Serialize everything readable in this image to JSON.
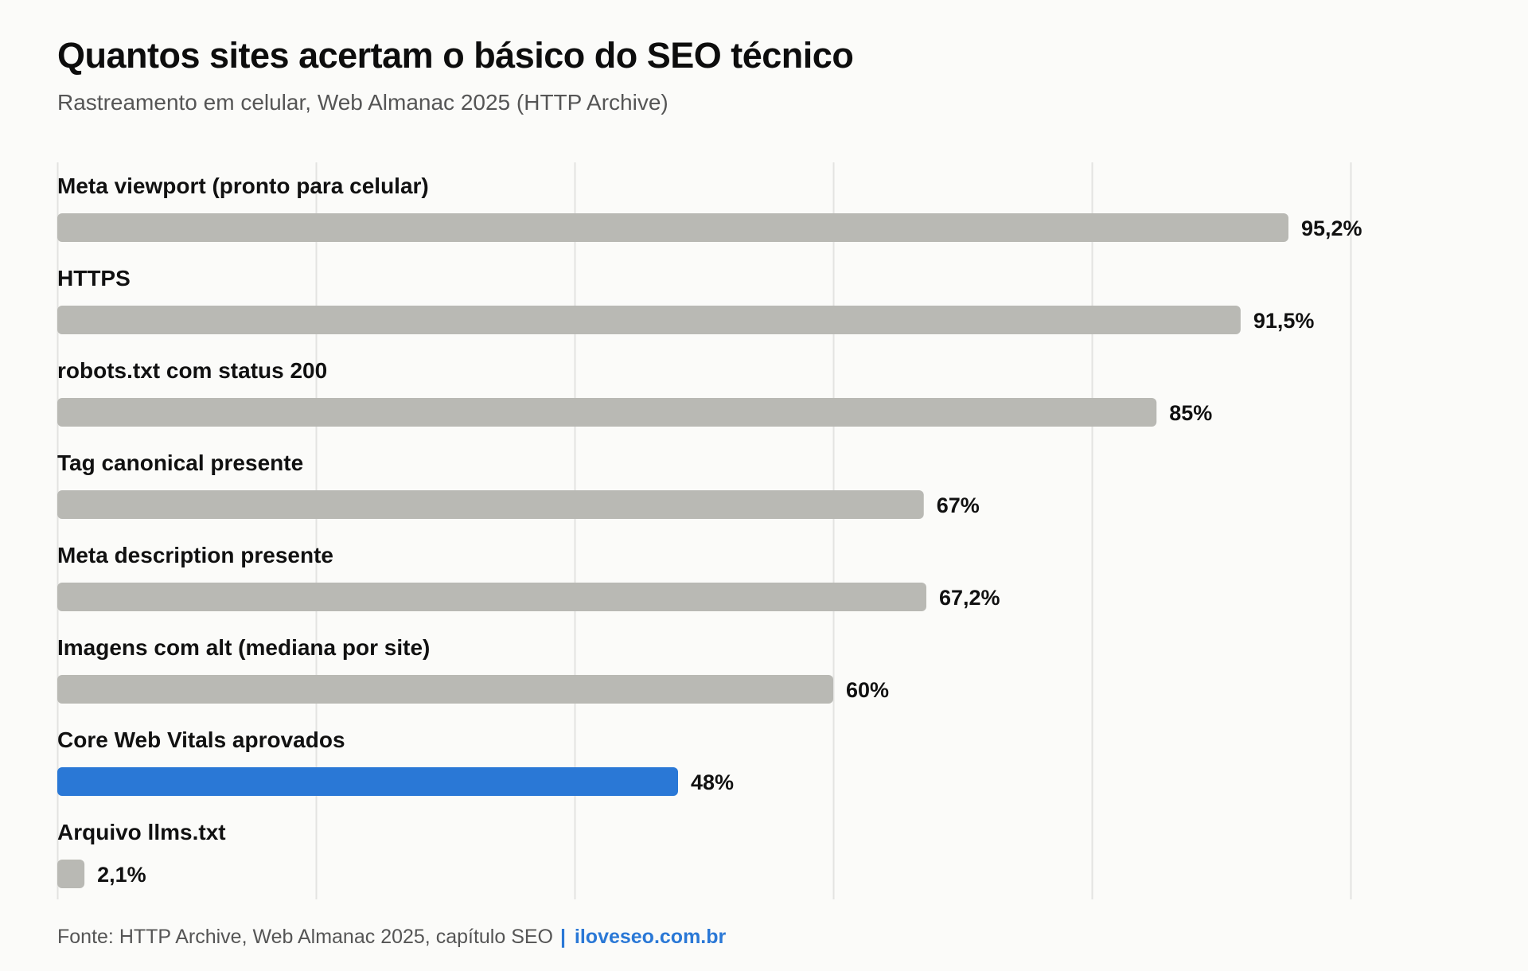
{
  "title": "Quantos sites acertam o básico do SEO técnico",
  "subtitle": "Rastreamento em celular, Web Almanac 2025 (HTTP Archive)",
  "footer": {
    "source": "Fonte: HTTP Archive, Web Almanac 2025, capítulo SEO",
    "separator": "|",
    "brand": "iloveseo.com.br"
  },
  "colors": {
    "bar": "#b9b9b4",
    "highlight": "#2a78d6",
    "grid": "#e3e3e1",
    "text": "#111111",
    "footer_brand": "#2a78d6"
  },
  "chart_data": {
    "type": "bar",
    "orientation": "horizontal",
    "categories": [
      "Meta viewport (pronto para celular)",
      "HTTPS",
      "robots.txt com status 200",
      "Tag canonical presente",
      "Meta description presente",
      "Imagens com alt (mediana por site)",
      "Core Web Vitals aprovados",
      "Arquivo llms.txt"
    ],
    "values": [
      95.2,
      91.5,
      85,
      67,
      67.2,
      60,
      48,
      2.1
    ],
    "value_labels": [
      "95,2%",
      "91,5%",
      "85%",
      "67%",
      "67,2%",
      "60%",
      "48%",
      "2,1%"
    ],
    "highlight": "Core Web Vitals aprovados",
    "xlim": [
      0,
      100
    ],
    "grid": true,
    "x_gridlines": [
      0,
      20,
      40,
      60,
      80,
      100
    ],
    "xlabel": "",
    "ylabel": ""
  }
}
